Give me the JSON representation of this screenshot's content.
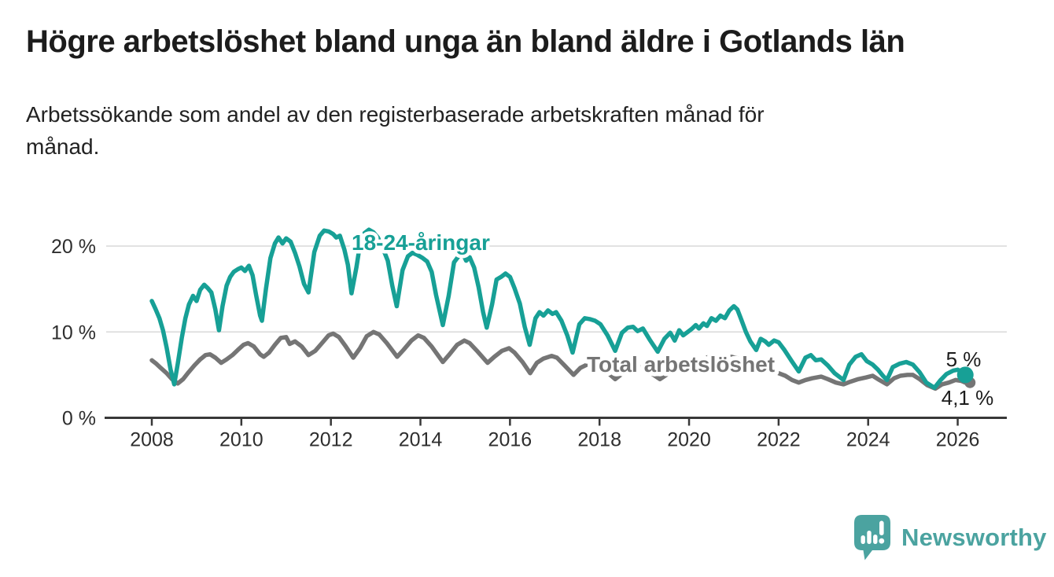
{
  "header": {
    "title": "Högre arbetslöshet bland unga än bland äldre i Gotlands län",
    "subtitle": "Arbetssökande som andel av den registerbaserade arbetskraften månad för\nmånad."
  },
  "chart": {
    "series_labels": {
      "youth": "18-24-åringar",
      "total": "Total arbetslöshet"
    },
    "end_labels": {
      "youth": "5 %",
      "total": "4,1 %"
    },
    "y_tick_labels": [
      "0 %",
      "10 %",
      "20 %"
    ],
    "x_tick_labels": [
      "2008",
      "2010",
      "2012",
      "2014",
      "2016",
      "2018",
      "2020",
      "2022",
      "2024",
      "2026"
    ],
    "colors": {
      "youth": "#17a096",
      "total": "#757575",
      "grid": "#d9d9d9",
      "axis": "#383838",
      "tick_text": "#2e2e2e",
      "value_text": "#1c1c1c"
    }
  },
  "chart_data": {
    "type": "line",
    "x_unit": "decimal_year",
    "y_unit": "percent",
    "xlim": [
      2007.0,
      2027.3
    ],
    "ylim": [
      0,
      22.5
    ],
    "x_ticks": [
      2008,
      2010,
      2012,
      2014,
      2016,
      2018,
      2020,
      2022,
      2024,
      2026
    ],
    "y_ticks": [
      0,
      10,
      20
    ],
    "grid": "horizontal",
    "series": [
      {
        "name": "Total arbetslöshet",
        "color": "#757575",
        "end_value": 4.1,
        "points": [
          [
            2008.0,
            6.7
          ],
          [
            2008.1,
            6.3
          ],
          [
            2008.2,
            5.8
          ],
          [
            2008.33,
            5.2
          ],
          [
            2008.45,
            4.5
          ],
          [
            2008.58,
            4.0
          ],
          [
            2008.7,
            4.5
          ],
          [
            2008.82,
            5.3
          ],
          [
            2008.95,
            6.1
          ],
          [
            2009.08,
            6.8
          ],
          [
            2009.2,
            7.3
          ],
          [
            2009.3,
            7.4
          ],
          [
            2009.42,
            7.0
          ],
          [
            2009.55,
            6.4
          ],
          [
            2009.67,
            6.8
          ],
          [
            2009.8,
            7.3
          ],
          [
            2009.92,
            7.9
          ],
          [
            2010.05,
            8.5
          ],
          [
            2010.15,
            8.7
          ],
          [
            2010.28,
            8.3
          ],
          [
            2010.42,
            7.4
          ],
          [
            2010.5,
            7.1
          ],
          [
            2010.62,
            7.6
          ],
          [
            2010.75,
            8.5
          ],
          [
            2010.88,
            9.3
          ],
          [
            2011.0,
            9.4
          ],
          [
            2011.08,
            8.6
          ],
          [
            2011.2,
            8.9
          ],
          [
            2011.35,
            8.3
          ],
          [
            2011.5,
            7.3
          ],
          [
            2011.65,
            7.8
          ],
          [
            2011.8,
            8.7
          ],
          [
            2011.95,
            9.6
          ],
          [
            2012.05,
            9.8
          ],
          [
            2012.18,
            9.4
          ],
          [
            2012.32,
            8.4
          ],
          [
            2012.5,
            7.0
          ],
          [
            2012.65,
            8.1
          ],
          [
            2012.8,
            9.5
          ],
          [
            2012.95,
            10.0
          ],
          [
            2013.08,
            9.7
          ],
          [
            2013.25,
            8.7
          ],
          [
            2013.48,
            7.1
          ],
          [
            2013.62,
            7.9
          ],
          [
            2013.8,
            9.0
          ],
          [
            2013.95,
            9.6
          ],
          [
            2014.08,
            9.3
          ],
          [
            2014.25,
            8.3
          ],
          [
            2014.5,
            6.5
          ],
          [
            2014.65,
            7.4
          ],
          [
            2014.82,
            8.5
          ],
          [
            2014.98,
            9.0
          ],
          [
            2015.1,
            8.7
          ],
          [
            2015.28,
            7.7
          ],
          [
            2015.5,
            6.4
          ],
          [
            2015.65,
            7.1
          ],
          [
            2015.82,
            7.8
          ],
          [
            2015.98,
            8.1
          ],
          [
            2016.1,
            7.6
          ],
          [
            2016.28,
            6.5
          ],
          [
            2016.45,
            5.2
          ],
          [
            2016.6,
            6.4
          ],
          [
            2016.75,
            6.9
          ],
          [
            2016.93,
            7.2
          ],
          [
            2017.05,
            7.0
          ],
          [
            2017.22,
            6.1
          ],
          [
            2017.42,
            5.0
          ],
          [
            2017.57,
            5.8
          ],
          [
            2017.72,
            6.2
          ],
          [
            2017.88,
            6.3
          ],
          [
            2018.0,
            6.1
          ],
          [
            2018.15,
            5.4
          ],
          [
            2018.35,
            4.5
          ],
          [
            2018.52,
            5.2
          ],
          [
            2018.7,
            5.6
          ],
          [
            2018.88,
            5.9
          ],
          [
            2019.0,
            5.8
          ],
          [
            2019.15,
            5.2
          ],
          [
            2019.35,
            4.5
          ],
          [
            2019.52,
            5.1
          ],
          [
            2019.7,
            5.5
          ],
          [
            2019.9,
            5.7
          ],
          [
            2020.1,
            6.1
          ],
          [
            2020.3,
            6.7
          ],
          [
            2020.5,
            7.3
          ],
          [
            2020.65,
            7.1
          ],
          [
            2020.8,
            6.9
          ],
          [
            2020.95,
            7.1
          ],
          [
            2021.1,
            6.9
          ],
          [
            2021.3,
            6.3
          ],
          [
            2021.5,
            5.8
          ],
          [
            2021.7,
            5.6
          ],
          [
            2021.9,
            5.4
          ],
          [
            2022.05,
            5.1
          ],
          [
            2022.15,
            4.9
          ],
          [
            2022.3,
            4.4
          ],
          [
            2022.45,
            4.1
          ],
          [
            2022.6,
            4.4
          ],
          [
            2022.75,
            4.6
          ],
          [
            2022.95,
            4.8
          ],
          [
            2023.1,
            4.5
          ],
          [
            2023.28,
            4.1
          ],
          [
            2023.45,
            3.9
          ],
          [
            2023.6,
            4.2
          ],
          [
            2023.78,
            4.5
          ],
          [
            2023.95,
            4.7
          ],
          [
            2024.1,
            4.9
          ],
          [
            2024.25,
            4.4
          ],
          [
            2024.42,
            3.9
          ],
          [
            2024.58,
            4.6
          ],
          [
            2024.72,
            4.9
          ],
          [
            2024.88,
            5.0
          ],
          [
            2025.0,
            5.0
          ],
          [
            2025.15,
            4.5
          ],
          [
            2025.32,
            3.8
          ],
          [
            2025.5,
            3.4
          ],
          [
            2025.65,
            3.9
          ],
          [
            2025.8,
            4.1
          ],
          [
            2025.95,
            4.4
          ],
          [
            2026.08,
            4.3
          ],
          [
            2026.17,
            4.1
          ]
        ]
      },
      {
        "name": "18-24-åringar",
        "color": "#17a096",
        "end_value": 5.0,
        "points": [
          [
            2008.0,
            13.6
          ],
          [
            2008.08,
            12.7
          ],
          [
            2008.17,
            11.6
          ],
          [
            2008.25,
            10.2
          ],
          [
            2008.33,
            8.2
          ],
          [
            2008.42,
            5.6
          ],
          [
            2008.5,
            3.9
          ],
          [
            2008.58,
            6.3
          ],
          [
            2008.67,
            9.3
          ],
          [
            2008.75,
            11.6
          ],
          [
            2008.83,
            13.2
          ],
          [
            2008.92,
            14.2
          ],
          [
            2009.0,
            13.6
          ],
          [
            2009.08,
            14.9
          ],
          [
            2009.17,
            15.5
          ],
          [
            2009.25,
            15.1
          ],
          [
            2009.33,
            14.6
          ],
          [
            2009.42,
            12.6
          ],
          [
            2009.5,
            10.2
          ],
          [
            2009.58,
            13.0
          ],
          [
            2009.67,
            15.4
          ],
          [
            2009.75,
            16.4
          ],
          [
            2009.83,
            17.0
          ],
          [
            2009.92,
            17.3
          ],
          [
            2010.0,
            17.5
          ],
          [
            2010.08,
            17.1
          ],
          [
            2010.17,
            17.7
          ],
          [
            2010.25,
            16.6
          ],
          [
            2010.33,
            14.3
          ],
          [
            2010.42,
            11.9
          ],
          [
            2010.46,
            11.3
          ],
          [
            2010.55,
            15.0
          ],
          [
            2010.65,
            18.6
          ],
          [
            2010.75,
            20.3
          ],
          [
            2010.83,
            21.0
          ],
          [
            2010.92,
            20.3
          ],
          [
            2011.0,
            20.9
          ],
          [
            2011.1,
            20.5
          ],
          [
            2011.2,
            19.2
          ],
          [
            2011.3,
            17.6
          ],
          [
            2011.4,
            15.6
          ],
          [
            2011.5,
            14.6
          ],
          [
            2011.63,
            19.3
          ],
          [
            2011.75,
            21.2
          ],
          [
            2011.85,
            21.8
          ],
          [
            2011.95,
            21.7
          ],
          [
            2012.05,
            21.4
          ],
          [
            2012.12,
            21.0
          ],
          [
            2012.2,
            21.2
          ],
          [
            2012.3,
            19.6
          ],
          [
            2012.38,
            17.8
          ],
          [
            2012.46,
            14.5
          ],
          [
            2012.57,
            17.5
          ],
          [
            2012.66,
            20.5
          ],
          [
            2012.75,
            21.5
          ],
          [
            2012.85,
            21.9
          ],
          [
            2012.95,
            21.6
          ],
          [
            2013.05,
            21.0
          ],
          [
            2013.15,
            19.9
          ],
          [
            2013.27,
            18.3
          ],
          [
            2013.37,
            15.4
          ],
          [
            2013.47,
            13.0
          ],
          [
            2013.6,
            17.2
          ],
          [
            2013.72,
            18.8
          ],
          [
            2013.82,
            19.2
          ],
          [
            2013.92,
            19.0
          ],
          [
            2014.05,
            18.6
          ],
          [
            2014.15,
            18.2
          ],
          [
            2014.25,
            17.0
          ],
          [
            2014.35,
            14.3
          ],
          [
            2014.5,
            10.8
          ],
          [
            2014.63,
            14.2
          ],
          [
            2014.75,
            18.1
          ],
          [
            2014.85,
            18.8
          ],
          [
            2014.95,
            19.1
          ],
          [
            2015.02,
            18.3
          ],
          [
            2015.1,
            18.7
          ],
          [
            2015.2,
            17.5
          ],
          [
            2015.3,
            15.2
          ],
          [
            2015.4,
            12.3
          ],
          [
            2015.48,
            10.5
          ],
          [
            2015.6,
            13.2
          ],
          [
            2015.7,
            16.1
          ],
          [
            2015.8,
            16.4
          ],
          [
            2015.9,
            16.8
          ],
          [
            2016.0,
            16.4
          ],
          [
            2016.1,
            15.1
          ],
          [
            2016.22,
            13.3
          ],
          [
            2016.33,
            10.6
          ],
          [
            2016.44,
            8.5
          ],
          [
            2016.57,
            11.6
          ],
          [
            2016.66,
            12.3
          ],
          [
            2016.75,
            11.9
          ],
          [
            2016.85,
            12.5
          ],
          [
            2016.95,
            12.1
          ],
          [
            2017.03,
            12.3
          ],
          [
            2017.15,
            11.3
          ],
          [
            2017.28,
            9.6
          ],
          [
            2017.4,
            7.6
          ],
          [
            2017.55,
            10.9
          ],
          [
            2017.67,
            11.6
          ],
          [
            2017.78,
            11.5
          ],
          [
            2017.9,
            11.3
          ],
          [
            2018.02,
            10.9
          ],
          [
            2018.18,
            9.6
          ],
          [
            2018.35,
            7.8
          ],
          [
            2018.5,
            9.9
          ],
          [
            2018.63,
            10.5
          ],
          [
            2018.75,
            10.6
          ],
          [
            2018.85,
            10.1
          ],
          [
            2018.97,
            10.4
          ],
          [
            2019.12,
            9.1
          ],
          [
            2019.3,
            7.7
          ],
          [
            2019.45,
            9.2
          ],
          [
            2019.58,
            9.9
          ],
          [
            2019.68,
            9.0
          ],
          [
            2019.78,
            10.2
          ],
          [
            2019.87,
            9.6
          ],
          [
            2019.97,
            10.0
          ],
          [
            2020.07,
            10.4
          ],
          [
            2020.15,
            10.8
          ],
          [
            2020.22,
            10.4
          ],
          [
            2020.32,
            11.0
          ],
          [
            2020.4,
            10.7
          ],
          [
            2020.5,
            11.6
          ],
          [
            2020.6,
            11.3
          ],
          [
            2020.7,
            11.9
          ],
          [
            2020.8,
            11.6
          ],
          [
            2020.9,
            12.5
          ],
          [
            2021.0,
            13.0
          ],
          [
            2021.08,
            12.6
          ],
          [
            2021.17,
            11.4
          ],
          [
            2021.27,
            10.0
          ],
          [
            2021.37,
            8.9
          ],
          [
            2021.5,
            7.9
          ],
          [
            2021.6,
            9.2
          ],
          [
            2021.7,
            8.9
          ],
          [
            2021.78,
            8.5
          ],
          [
            2021.9,
            9.0
          ],
          [
            2022.0,
            8.8
          ],
          [
            2022.13,
            7.9
          ],
          [
            2022.28,
            6.7
          ],
          [
            2022.45,
            5.4
          ],
          [
            2022.6,
            7.0
          ],
          [
            2022.72,
            7.3
          ],
          [
            2022.83,
            6.7
          ],
          [
            2022.95,
            6.8
          ],
          [
            2023.1,
            6.1
          ],
          [
            2023.25,
            5.2
          ],
          [
            2023.45,
            4.4
          ],
          [
            2023.58,
            6.2
          ],
          [
            2023.72,
            7.1
          ],
          [
            2023.85,
            7.4
          ],
          [
            2023.97,
            6.6
          ],
          [
            2024.1,
            6.2
          ],
          [
            2024.22,
            5.6
          ],
          [
            2024.33,
            4.9
          ],
          [
            2024.42,
            4.4
          ],
          [
            2024.55,
            5.9
          ],
          [
            2024.7,
            6.3
          ],
          [
            2024.85,
            6.5
          ],
          [
            2025.0,
            6.2
          ],
          [
            2025.15,
            5.3
          ],
          [
            2025.3,
            4.1
          ],
          [
            2025.48,
            3.5
          ],
          [
            2025.62,
            4.4
          ],
          [
            2025.75,
            5.1
          ],
          [
            2025.9,
            5.5
          ],
          [
            2026.0,
            5.6
          ],
          [
            2026.08,
            5.4
          ],
          [
            2026.17,
            5.0
          ]
        ]
      }
    ]
  },
  "branding": {
    "logo_text": "Newsworthy",
    "color": "#4ba3a0"
  }
}
